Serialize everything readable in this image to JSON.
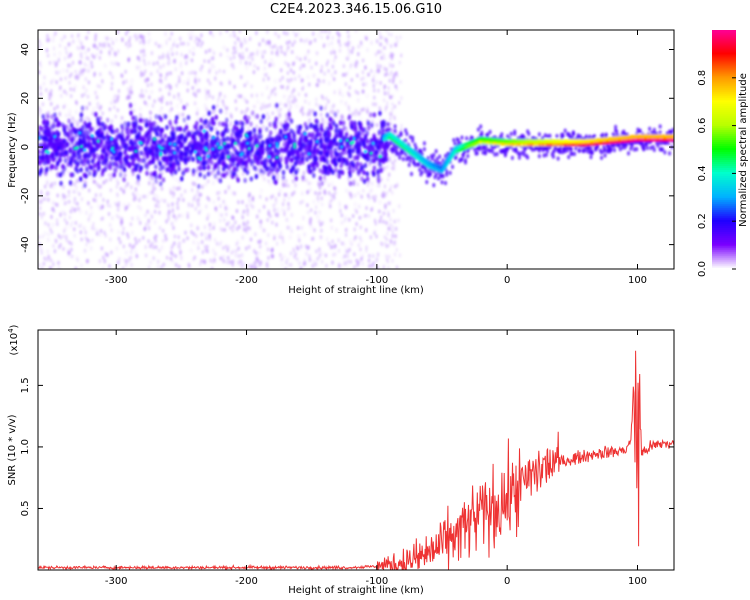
{
  "title": "C2E4.2023.346.15.06.G10",
  "chart_data": [
    {
      "type": "heatmap",
      "title": "C2E4.2023.346.15.06.G10",
      "xlabel": "Height of straight line (km)",
      "ylabel": "Frequency (Hz)",
      "xlim": [
        -360,
        128
      ],
      "ylim": [
        -50,
        48
      ],
      "x_ticks": [
        -300,
        -200,
        -100,
        0,
        100
      ],
      "y_ticks": [
        -40,
        -20,
        0,
        20,
        40
      ],
      "colorbar": {
        "label": "Normalized spectral amplitude",
        "ticks": [
          0.0,
          0.2,
          0.4,
          0.6,
          0.8
        ],
        "range": [
          0,
          1
        ],
        "colors": [
          "#ffffff",
          "#7a00ff",
          "#1f00ff",
          "#00b2ff",
          "#00ffcc",
          "#00ff00",
          "#b8ff00",
          "#ffff00",
          "#ff9900",
          "#ff0000",
          "#ff0099"
        ]
      },
      "ridge": {
        "x": [
          -360,
          -300,
          -200,
          -100,
          -90,
          -80,
          -70,
          -60,
          -50,
          -40,
          -30,
          -20,
          0,
          20,
          40,
          60,
          80,
          100,
          128
        ],
        "y": [
          0,
          0,
          0,
          2,
          4,
          0,
          -4,
          -8,
          -10,
          -2,
          0,
          2,
          1,
          1,
          1,
          1,
          2,
          3,
          3
        ],
        "amplitude": [
          0.15,
          0.15,
          0.15,
          0.2,
          0.45,
          0.45,
          0.4,
          0.35,
          0.3,
          0.4,
          0.55,
          0.6,
          0.65,
          0.72,
          0.8,
          0.85,
          0.88,
          0.9,
          0.9
        ]
      }
    },
    {
      "type": "line",
      "xlabel": "Height of straight line (km)",
      "ylabel": "SNR (10 * v/v)",
      "y_scale_label": "(x10",
      "y_scale_exponent": "4",
      "y_scale_close": ")",
      "xlim": [
        -360,
        128
      ],
      "ylim": [
        0,
        1.95
      ],
      "x_ticks": [
        -300,
        -200,
        -100,
        0,
        100
      ],
      "y_ticks": [
        0.5,
        1.0,
        1.5
      ],
      "color": "#ee3333",
      "series": [
        {
          "x": [
            -360,
            -300,
            -200,
            -120,
            -100,
            -90,
            -80,
            -70,
            -60,
            -50,
            -40,
            -30,
            -20,
            -10,
            0,
            10,
            20,
            30,
            40,
            50,
            60,
            70,
            80,
            90,
            95,
            97,
            99,
            101,
            103,
            110,
            120,
            128
          ],
          "y": [
            0.02,
            0.02,
            0.02,
            0.02,
            0.03,
            0.04,
            0.06,
            0.09,
            0.14,
            0.2,
            0.28,
            0.36,
            0.45,
            0.5,
            0.58,
            0.68,
            0.78,
            0.85,
            0.88,
            0.9,
            0.93,
            0.95,
            0.96,
            0.97,
            1.05,
            1.55,
            0.3,
            1.9,
            0.95,
            1.0,
            1.03,
            1.02
          ]
        }
      ]
    }
  ]
}
